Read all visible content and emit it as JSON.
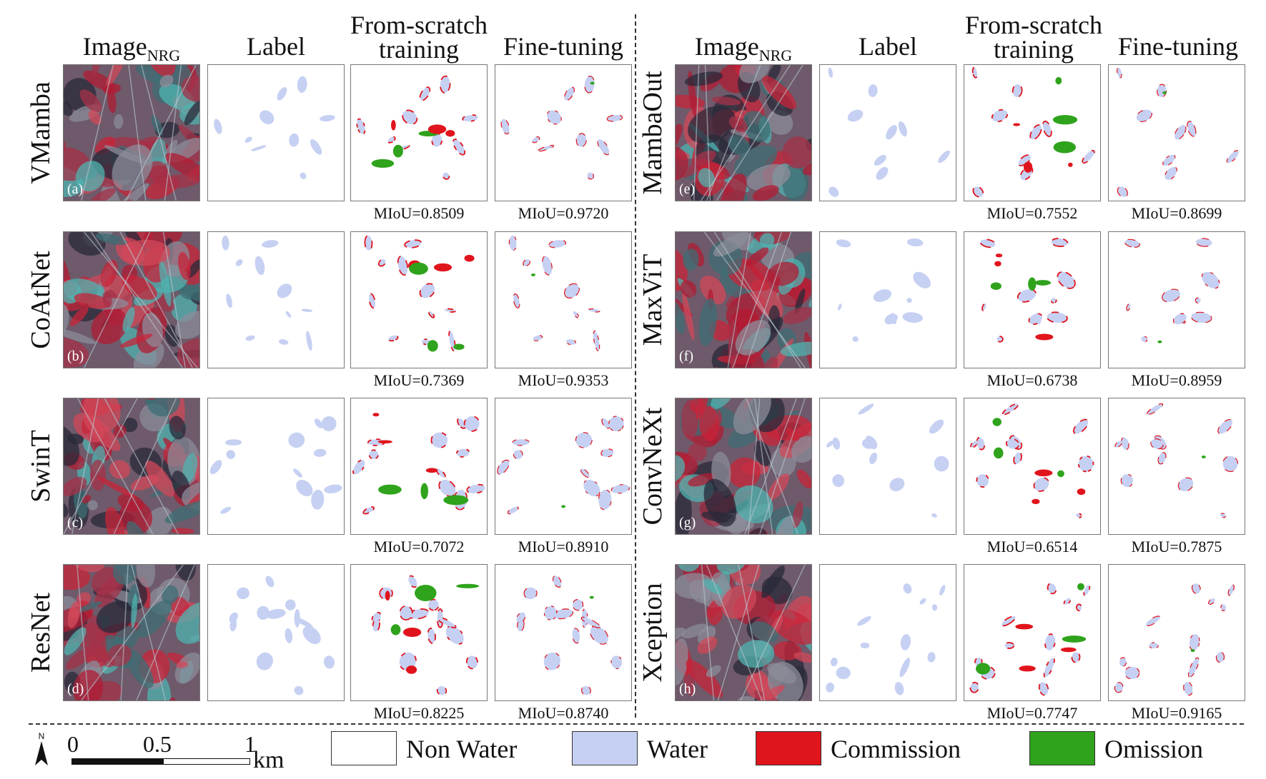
{
  "headers": {
    "image": "Image",
    "image_sub": "NRG",
    "label": "Label",
    "scratch_line1": "From-scratch",
    "scratch_line2": "training",
    "finetune": "Fine-tuning"
  },
  "rows": [
    {
      "letter": "(a)",
      "model": "VMamba",
      "miou_scratch": "MIoU=0.8509",
      "miou_finetune": "MIoU=0.9720"
    },
    {
      "letter": "(b)",
      "model": "CoAtNet",
      "miou_scratch": "MIoU=0.7369",
      "miou_finetune": "MIoU=0.9353"
    },
    {
      "letter": "(c)",
      "model": "SwinT",
      "miou_scratch": "MIoU=0.7072",
      "miou_finetune": "MIoU=0.8910"
    },
    {
      "letter": "(d)",
      "model": "ResNet",
      "miou_scratch": "MIoU=0.8225",
      "miou_finetune": "MIoU=0.8740"
    },
    {
      "letter": "(e)",
      "model": "MambaOut",
      "miou_scratch": "MIoU=0.7552",
      "miou_finetune": "MIoU=0.8699"
    },
    {
      "letter": "(f)",
      "model": "MaxViT",
      "miou_scratch": "MIoU=0.6738",
      "miou_finetune": "MIoU=0.8959"
    },
    {
      "letter": "(g)",
      "model": "ConvNeXt",
      "miou_scratch": "MIoU=0.6514",
      "miou_finetune": "MIoU=0.7875"
    },
    {
      "letter": "(h)",
      "model": "Xception",
      "miou_scratch": "MIoU=0.7747",
      "miou_finetune": "MIoU=0.9165"
    }
  ],
  "legend": {
    "north": "N",
    "scale": [
      "0",
      "0.5",
      "1"
    ],
    "unit": "km",
    "non_water": "Non Water",
    "water": "Water",
    "commission": "Commission",
    "omission": "Omission"
  },
  "colors": {
    "water": "#c6d0f2",
    "commission": "#e0141c",
    "omission": "#2fa31c",
    "image_red": "#c8243a",
    "image_dark": "#2a2a3a",
    "image_cyan": "#4fb3b0"
  }
}
